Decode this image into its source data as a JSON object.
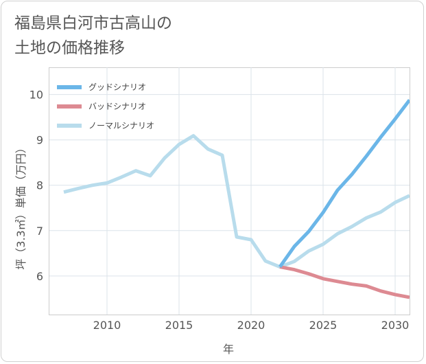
{
  "title_line1": "福島県白河市古高山の",
  "title_line2": "土地の価格推移",
  "chart_data": {
    "type": "line",
    "xlabel": "年",
    "ylabel": "坪（3.3㎡）単価（万円）",
    "xlim": [
      2006,
      2031
    ],
    "ylim": [
      5.15,
      10.6
    ],
    "x_ticks": [
      2010,
      2015,
      2020,
      2025,
      2030
    ],
    "y_ticks": [
      6,
      7,
      8,
      9,
      10
    ],
    "grid": true,
    "legend_position": "top-left",
    "series": [
      {
        "name": "グッドシナリオ",
        "color": "#6bb6e8",
        "x": [
          2022,
          2023,
          2024,
          2025,
          2026,
          2027,
          2028,
          2029,
          2030,
          2031
        ],
        "y": [
          6.2,
          6.65,
          6.98,
          7.4,
          7.89,
          8.24,
          8.64,
          9.06,
          9.46,
          9.88
        ]
      },
      {
        "name": "バッドシナリオ",
        "color": "#dd8a92",
        "x": [
          2022,
          2023,
          2024,
          2025,
          2026,
          2027,
          2028,
          2029,
          2030,
          2031
        ],
        "y": [
          6.2,
          6.14,
          6.05,
          5.94,
          5.88,
          5.82,
          5.78,
          5.67,
          5.59,
          5.53
        ]
      },
      {
        "name": "ノーマルシナリオ",
        "color": "#b8dcec",
        "x": [
          2007,
          2008,
          2009,
          2010,
          2011,
          2012,
          2013,
          2014,
          2015,
          2016,
          2017,
          2018,
          2019,
          2020,
          2021,
          2022,
          2023,
          2024,
          2025,
          2026,
          2027,
          2028,
          2029,
          2030,
          2031
        ],
        "y": [
          7.85,
          7.93,
          8.0,
          8.05,
          8.18,
          8.32,
          8.21,
          8.6,
          8.9,
          9.09,
          8.8,
          8.66,
          6.86,
          6.8,
          6.33,
          6.2,
          6.32,
          6.55,
          6.7,
          6.93,
          7.09,
          7.28,
          7.41,
          7.62,
          7.77
        ]
      }
    ]
  }
}
